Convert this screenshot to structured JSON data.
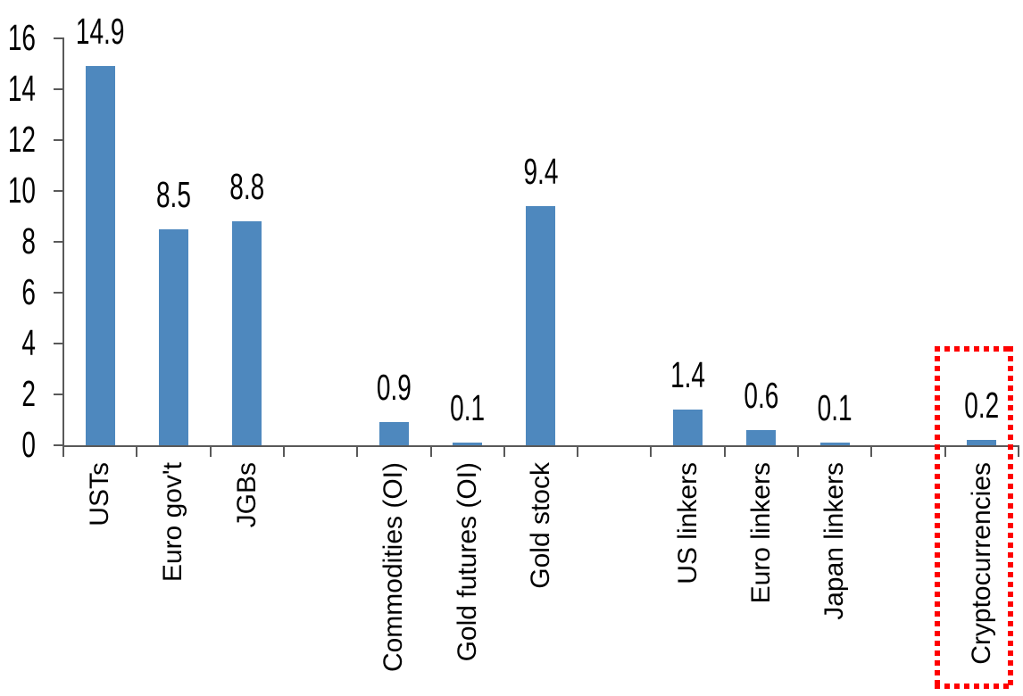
{
  "chart_data": {
    "type": "bar",
    "title": "",
    "xlabel": "",
    "ylabel": "",
    "categories": [
      "USTs",
      "Euro gov't",
      "JGBs",
      "",
      "Commodities (OI)",
      "Gold futures (OI)",
      "Gold stock",
      "",
      "US linkers",
      "Euro linkers",
      "Japan linkers",
      "",
      "Cryptocurrencies"
    ],
    "values": [
      14.9,
      8.5,
      8.8,
      null,
      0.9,
      0.1,
      9.4,
      null,
      1.4,
      0.6,
      0.1,
      null,
      0.2
    ],
    "data_labels": [
      "14.9",
      "8.5",
      "8.8",
      null,
      "0.9",
      "0.1",
      "9.4",
      null,
      "1.4",
      "0.6",
      "0.1",
      null,
      "0.2"
    ],
    "ylim": [
      0,
      16
    ],
    "yticks": [
      0,
      2,
      4,
      6,
      8,
      10,
      12,
      14,
      16
    ],
    "ytick_labels": [
      "0",
      "2",
      "4",
      "6",
      "8",
      "10",
      "12",
      "14",
      "16"
    ],
    "grid": false,
    "legend": false,
    "bar_color": "#4E88BE",
    "axis_color": "#595959",
    "label_color": "#000000",
    "highlight": {
      "category": "Cryptocurrencies",
      "style": "red-square-dotted-box",
      "color": "#FF0000"
    }
  }
}
